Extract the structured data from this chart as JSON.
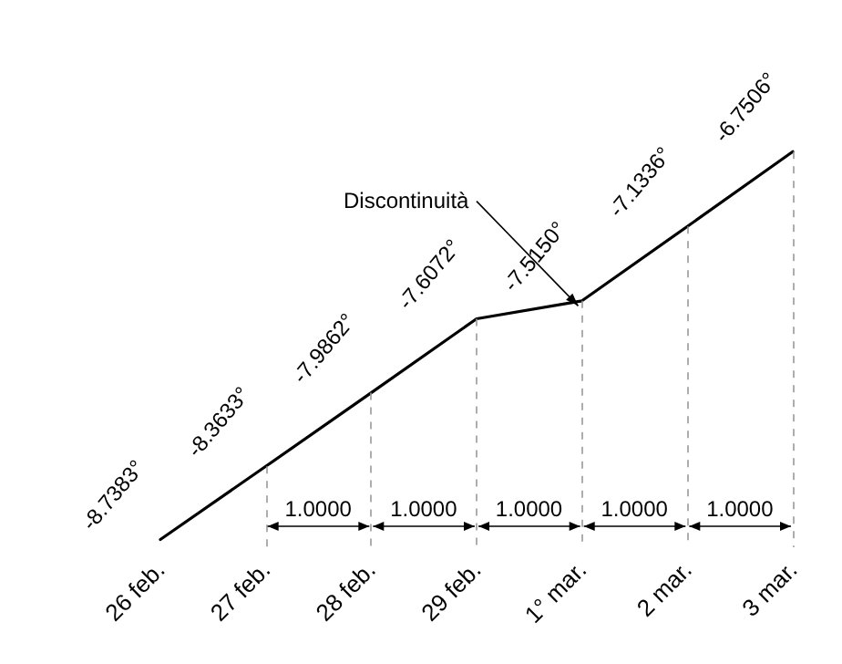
{
  "chart_data": {
    "type": "line",
    "categories": [
      "26 feb.",
      "27 feb.",
      "28 feb.",
      "29 feb.",
      "1° mar.",
      "2 mar.",
      "3 mar."
    ],
    "values": [
      -8.7383,
      -8.3633,
      -7.9862,
      -7.6072,
      -7.515,
      -7.1336,
      -6.7506
    ],
    "value_labels": [
      "-8.7383°",
      "-8.3633°",
      "-7.9862°",
      "-7.6072°",
      "-7.5150°",
      "-7.1336°",
      "-6.7506°"
    ],
    "color": "#000000",
    "marker": "none",
    "grid": false,
    "line_style": "solid",
    "tick_labels": "x",
    "ref_lines": [
      {
        "axis": "x",
        "value": "27 feb.",
        "color": "#999999",
        "line_style": "dashed"
      },
      {
        "axis": "x",
        "value": "28 feb.",
        "color": "#999999",
        "line_style": "dashed"
      },
      {
        "axis": "x",
        "value": "29 feb.",
        "color": "#999999",
        "line_style": "dashed"
      },
      {
        "axis": "x",
        "value": "1° mar.",
        "color": "#999999",
        "line_style": "dashed"
      },
      {
        "axis": "x",
        "value": "2 mar.",
        "color": "#999999",
        "line_style": "dashed"
      },
      {
        "axis": "x",
        "value": "3 mar.",
        "color": "#999999",
        "line_style": "dashed"
      }
    ],
    "annotations": [
      "Discontinuità",
      "1.0000",
      "1.0000",
      "1.0000",
      "1.0000",
      "1.0000"
    ]
  }
}
